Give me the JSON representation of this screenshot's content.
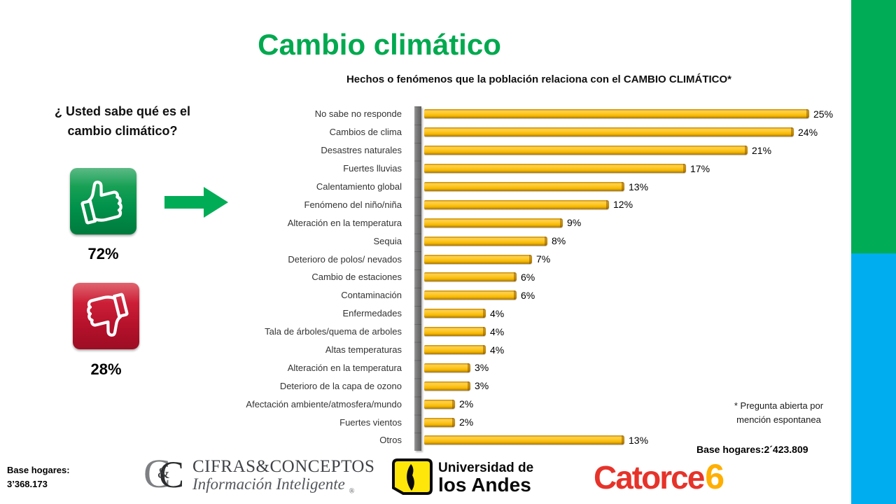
{
  "slide": {
    "title": "Cambio climático",
    "subtitle": "Hechos o fenómenos que la población relaciona con el CAMBIO CLIMÁTICO*"
  },
  "left_panel": {
    "question": "¿ Usted sabe qué es el cambio climático?",
    "yes_pct": "72%",
    "no_pct": "28%"
  },
  "chart_data": {
    "type": "bar",
    "orientation": "horizontal",
    "title": "Hechos o fenómenos que la población relaciona con el CAMBIO CLIMÁTICO*",
    "categories": [
      "No sabe no responde",
      "Cambios de clima",
      "Desastres naturales",
      "Fuertes lluvias",
      "Calentamiento global",
      "Fenómeno del niño/niña",
      "Alteración en la temperatura",
      "Sequia",
      "Deterioro de polos/ nevados",
      "Cambio de estaciones",
      "Contaminación",
      "Enfermedades",
      "Tala de árboles/quema de arboles",
      "Altas temperaturas",
      "Alteración en la temperatura",
      "Deterioro de la capa de ozono",
      "Afectación ambiente/atmosfera/mundo",
      "Fuertes vientos",
      "Otros"
    ],
    "values": [
      25,
      24,
      21,
      17,
      13,
      12,
      9,
      8,
      7,
      6,
      6,
      4,
      4,
      4,
      3,
      3,
      2,
      2,
      13
    ],
    "value_labels": [
      "25%",
      "24%",
      "21%",
      "17%",
      "13%",
      "12%",
      "9%",
      "8%",
      "7%",
      "6%",
      "6%",
      "4%",
      "4%",
      "4%",
      "3%",
      "3%",
      "2%",
      "2%",
      "13%"
    ],
    "xlim": [
      0,
      25
    ],
    "grid": false,
    "legend": "none",
    "bar_color": "#FFC000",
    "axis_color": "#7c7c7c"
  },
  "footnotes": {
    "open_question_note": "* Pregunta abierta por mención espontanea",
    "base_hogares_right": "Base hogares:2´423.809",
    "base_hogares_left": "Base hogares: 3’368.173"
  },
  "logos": {
    "cifras": {
      "monogram_c1": "C",
      "monogram_c2": "C",
      "monogram_amp": "&",
      "name": "CIFRAS&CONCEPTOS",
      "tagline": "Información Inteligente",
      "registered": "®"
    },
    "uniandes": {
      "line1": "Universidad de",
      "line2": "los Andes"
    },
    "catorce": {
      "word": "Catorce",
      "number": "6"
    }
  },
  "colors": {
    "title_green": "#00A94F",
    "edge_green": "#00AC56",
    "edge_blue": "#00AEEF",
    "arrow_green": "#00AC56",
    "thumb_up_green": "#00914A",
    "thumb_down_red": "#BE1431",
    "bar_gold": "#FFC000",
    "catorce_red": "#E6332A",
    "catorce_yellow": "#FFAF00",
    "uniandes_yellow": "#FFE60A"
  }
}
